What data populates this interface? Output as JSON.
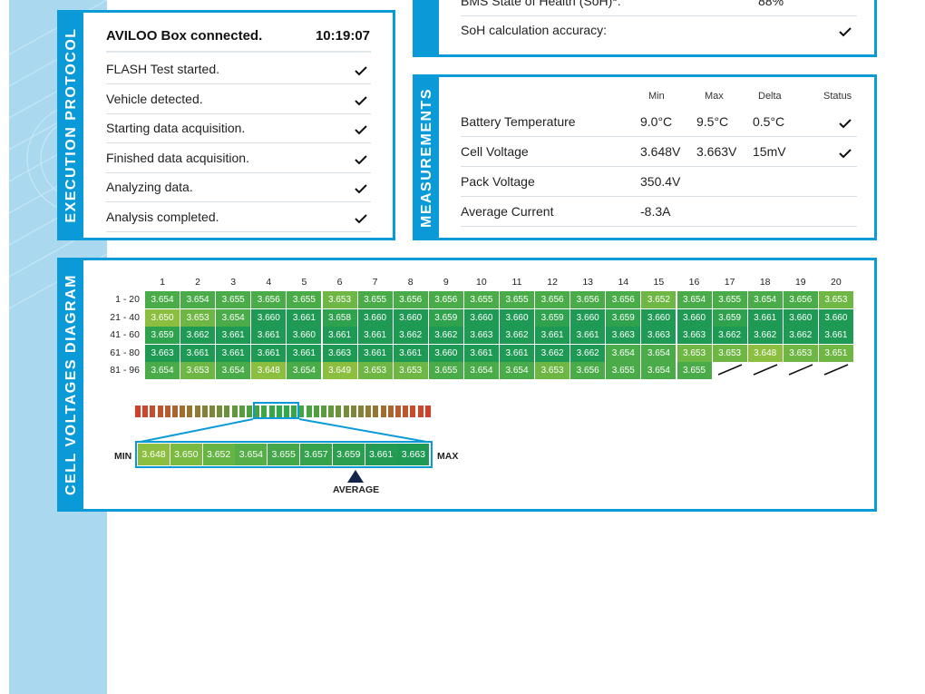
{
  "execution_protocol": {
    "tab_label": "EXECUTION PROTOCOL",
    "header": {
      "title": "AVILOO Box connected.",
      "time": "10:19:07"
    },
    "steps": [
      "FLASH Test started.",
      "Vehicle detected.",
      "Starting data acquisition.",
      "Finished data acquisition.",
      "Analyzing data.",
      "Analysis completed."
    ]
  },
  "soh": {
    "row1_label": "BMS State of Health (SoH)*:",
    "row1_value": "88%",
    "row2_label": "SoH calculation accuracy:"
  },
  "measurements": {
    "tab_label": "MEASUREMENTS",
    "headers": {
      "min": "Min",
      "max": "Max",
      "delta": "Delta",
      "status": "Status"
    },
    "rows": [
      {
        "label": "Battery Temperature",
        "min": "9.0°C",
        "max": "9.5°C",
        "delta": "0.5°C",
        "check": true
      },
      {
        "label": "Cell Voltage",
        "min": "3.648V",
        "max": "3.663V",
        "delta": "15mV",
        "check": true
      },
      {
        "label": "Pack Voltage",
        "min": "350.4V",
        "max": "",
        "delta": "",
        "check": false
      },
      {
        "label": "Average Current",
        "min": "-8.3A",
        "max": "",
        "delta": "",
        "check": false
      }
    ]
  },
  "cell_voltages": {
    "tab_label": "CELL VOLTAGES DIAGRAM",
    "columns": [
      "1",
      "2",
      "3",
      "4",
      "5",
      "6",
      "7",
      "8",
      "9",
      "10",
      "11",
      "12",
      "13",
      "14",
      "15",
      "16",
      "17",
      "18",
      "19",
      "20"
    ],
    "rows": [
      {
        "label": "1 - 20",
        "values": [
          "3.654",
          "3.654",
          "3.655",
          "3.656",
          "3.655",
          "3.653",
          "3.655",
          "3.656",
          "3.656",
          "3.655",
          "3.655",
          "3.656",
          "3.656",
          "3.656",
          "3.652",
          "3.654",
          "3.655",
          "3.654",
          "3.656",
          "3.653"
        ]
      },
      {
        "label": "21 - 40",
        "values": [
          "3.650",
          "3.653",
          "3.654",
          "3.660",
          "3.661",
          "3.658",
          "3.660",
          "3.660",
          "3.659",
          "3.660",
          "3.660",
          "3.659",
          "3.660",
          "3.659",
          "3.660",
          "3.660",
          "3.659",
          "3.661",
          "3.660",
          "3.660"
        ]
      },
      {
        "label": "41 - 60",
        "values": [
          "3.659",
          "3.662",
          "3.661",
          "3.661",
          "3.660",
          "3.661",
          "3.661",
          "3.662",
          "3.662",
          "3.663",
          "3.662",
          "3.661",
          "3.661",
          "3.663",
          "3.663",
          "3.663",
          "3.662",
          "3.662",
          "3.662",
          "3.661"
        ]
      },
      {
        "label": "61 - 80",
        "values": [
          "3.663",
          "3.661",
          "3.661",
          "3.661",
          "3.661",
          "3.663",
          "3.661",
          "3.661",
          "3.660",
          "3.661",
          "3.661",
          "3.662",
          "3.662",
          "3.654",
          "3.654",
          "3.653",
          "3.653",
          "3.648",
          "3.653",
          "3.651"
        ]
      },
      {
        "label": "81 - 96",
        "values": [
          "3.654",
          "3.653",
          "3.654",
          "3.648",
          "3.654",
          "3.649",
          "3.653",
          "3.653",
          "3.655",
          "3.654",
          "3.654",
          "3.653",
          "3.656",
          "3.655",
          "3.654",
          "3.655"
        ]
      }
    ],
    "scale_values": [
      "3.648",
      "3.650",
      "3.652",
      "3.654",
      "3.655",
      "3.657",
      "3.659",
      "3.661",
      "3.663"
    ],
    "min_label": "MIN",
    "max_label": "MAX",
    "average_label": "AVERAGE"
  },
  "colors": {
    "accent": "#0a9ad8",
    "sidebar": "#a9d8ef",
    "cell_low": "#8cbf3f",
    "cell_mid": "#5fb443",
    "cell_high": "#1f9a55"
  }
}
